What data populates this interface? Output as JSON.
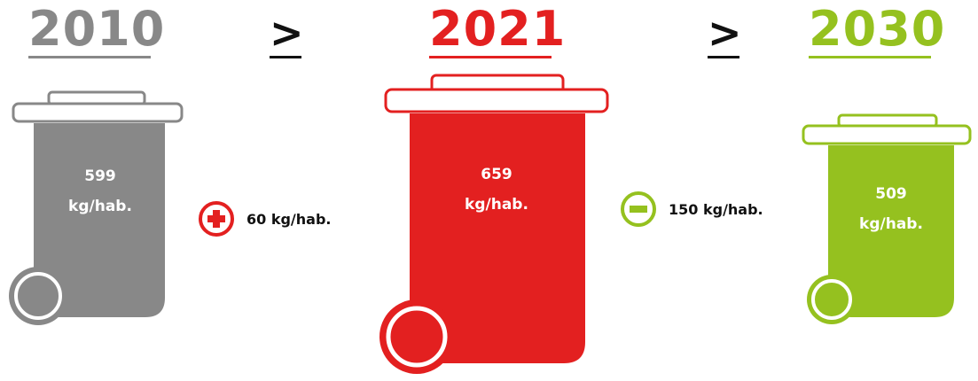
{
  "years": [
    "2010",
    "2021",
    "2030"
  ],
  "arrows": [
    ">",
    ">"
  ],
  "bins": [
    {
      "value": "599",
      "unit": "kg/hab.",
      "color": "#888888"
    },
    {
      "value": "659",
      "unit": "kg/hab.",
      "color": "#e32020"
    },
    {
      "value": "509",
      "unit": "kg/hab.",
      "color": "#95c11f"
    }
  ],
  "changes": [
    {
      "sign": "plus",
      "icon": "plus-circle-icon",
      "label": "60 kg/hab.",
      "color": "#e32020"
    },
    {
      "sign": "minus",
      "icon": "minus-circle-icon",
      "label": "150 kg/hab.",
      "color": "#95c11f"
    }
  ]
}
